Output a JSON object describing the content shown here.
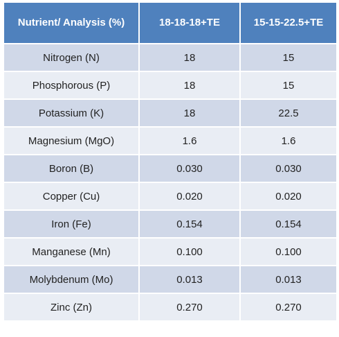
{
  "table": {
    "header": [
      "Nutrient/ Analysis (%)",
      "18-18-18+TE",
      "15-15-22.5+TE"
    ],
    "rows": [
      [
        "Nitrogen (N)",
        "18",
        "15"
      ],
      [
        "Phosphorous (P)",
        "18",
        "15"
      ],
      [
        "Potassium (K)",
        "18",
        "22.5"
      ],
      [
        "Magnesium (MgO)",
        "1.6",
        "1.6"
      ],
      [
        "Boron (B)",
        "0.030",
        "0.030"
      ],
      [
        "Copper (Cu)",
        "0.020",
        "0.020"
      ],
      [
        "Iron (Fe)",
        "0.154",
        "0.154"
      ],
      [
        "Manganese (Mn)",
        "0.100",
        "0.100"
      ],
      [
        "Molybdenum (Mo)",
        "0.013",
        "0.013"
      ],
      [
        "Zinc (Zn)",
        "0.270",
        "0.270"
      ]
    ]
  }
}
